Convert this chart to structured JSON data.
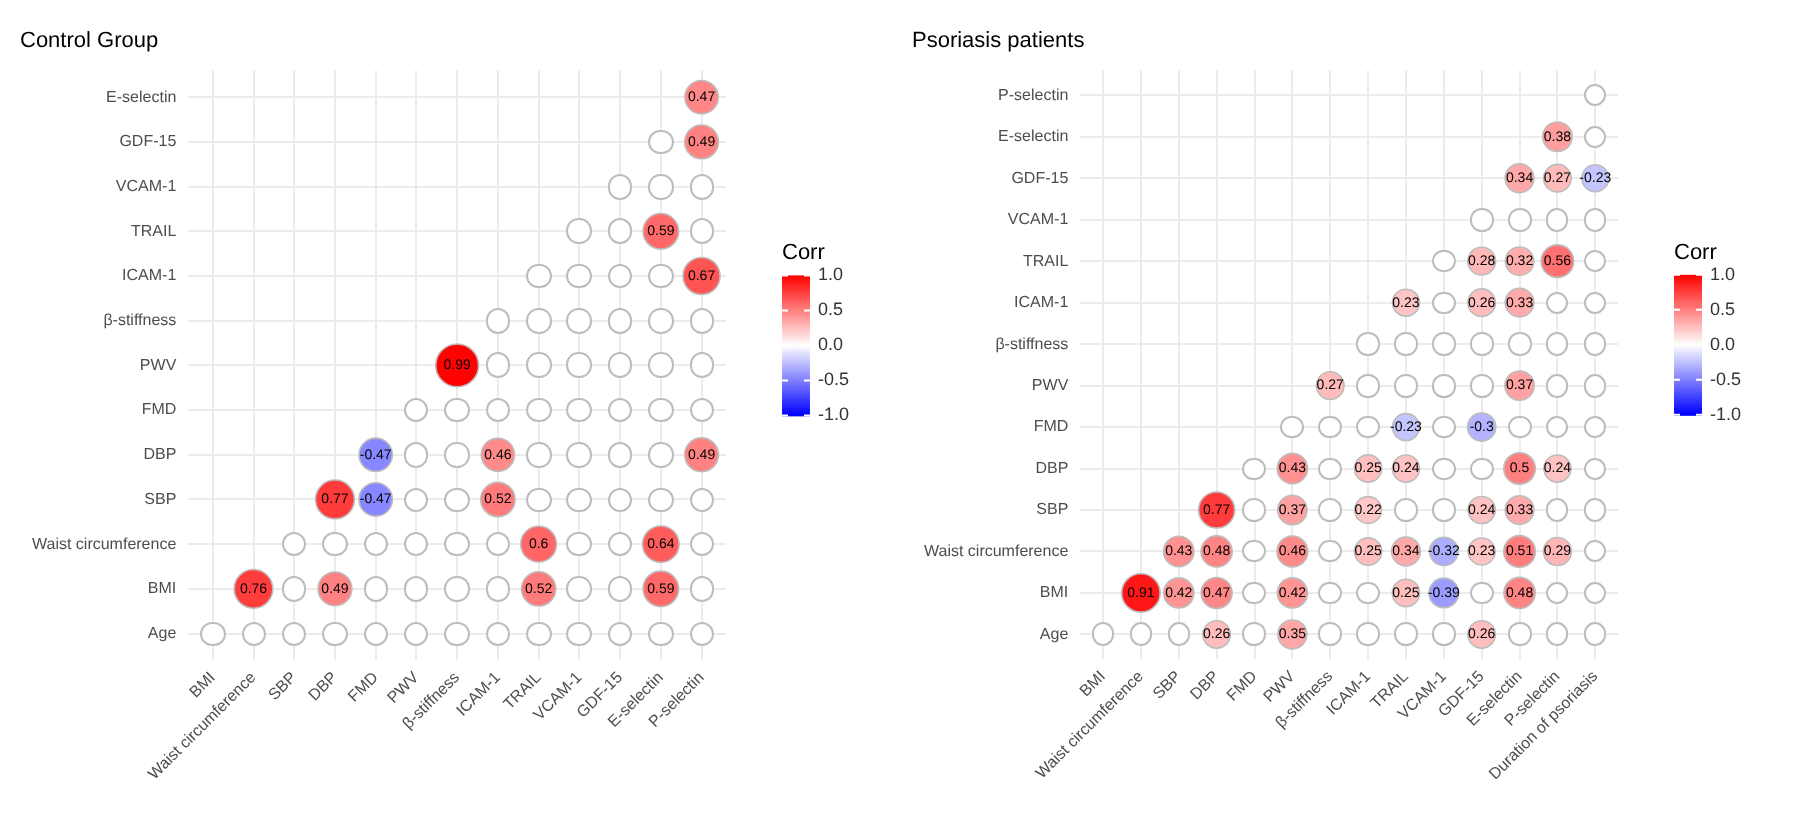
{
  "chart_data": [
    {
      "type": "heatmap",
      "title": "Control Group",
      "legend_title": "Corr",
      "grid": true,
      "data_labels": true,
      "clim": [
        -1,
        1
      ],
      "cticks": [
        {
          "value": 1,
          "label": "1.0"
        },
        {
          "value": 0.5,
          "label": "0.5"
        },
        {
          "value": 0,
          "label": "0.0"
        },
        {
          "value": -0.5,
          "label": "-0.5"
        },
        {
          "value": -1,
          "label": "-1.0"
        }
      ],
      "categories": [
        "BMI",
        "Waist circumference",
        "SBP",
        "DBP",
        "FMD",
        "PWV",
        "β-stiffness",
        "ICAM-1",
        "TRAIL",
        "VCAM-1",
        "GDF-15",
        "E-selectin",
        "P-selectin"
      ],
      "y_categories": [
        "E-selectin",
        "GDF-15",
        "VCAM-1",
        "TRAIL",
        "ICAM-1",
        "β-stiffness",
        "PWV",
        "FMD",
        "DBP",
        "SBP",
        "Waist circumference",
        "BMI",
        "Age"
      ],
      "cells": [
        [
          null,
          null,
          null,
          null,
          null,
          null,
          null,
          null,
          null,
          null,
          null,
          null,
          0.47
        ],
        [
          null,
          null,
          null,
          null,
          null,
          null,
          null,
          null,
          null,
          null,
          null,
          null,
          0.49
        ],
        [
          null,
          null,
          null,
          null,
          null,
          null,
          null,
          null,
          null,
          null,
          null,
          null,
          null
        ],
        [
          null,
          null,
          null,
          null,
          null,
          null,
          null,
          null,
          null,
          null,
          null,
          0.59,
          null
        ],
        [
          null,
          null,
          null,
          null,
          null,
          null,
          null,
          null,
          null,
          null,
          null,
          null,
          0.67
        ],
        [
          null,
          null,
          null,
          null,
          null,
          null,
          null,
          null,
          null,
          null,
          null,
          null,
          null
        ],
        [
          null,
          null,
          null,
          null,
          null,
          null,
          0.99,
          null,
          null,
          null,
          null,
          null,
          null
        ],
        [
          null,
          null,
          null,
          null,
          null,
          null,
          null,
          null,
          null,
          null,
          null,
          null,
          null
        ],
        [
          null,
          null,
          null,
          null,
          -0.47,
          null,
          null,
          0.46,
          null,
          null,
          null,
          null,
          0.49
        ],
        [
          null,
          null,
          null,
          0.77,
          -0.47,
          null,
          null,
          0.52,
          null,
          null,
          null,
          null,
          null
        ],
        [
          null,
          null,
          null,
          null,
          null,
          null,
          null,
          null,
          0.6,
          null,
          null,
          0.64,
          null
        ],
        [
          null,
          0.76,
          null,
          0.49,
          null,
          null,
          null,
          null,
          0.52,
          null,
          null,
          0.59,
          null
        ],
        [
          null,
          null,
          null,
          null,
          null,
          null,
          null,
          null,
          null,
          null,
          null,
          null,
          null
        ]
      ]
    },
    {
      "type": "heatmap",
      "title": "Psoriasis patients",
      "legend_title": "Corr",
      "grid": true,
      "data_labels": true,
      "clim": [
        -1,
        1
      ],
      "cticks": [
        {
          "value": 1,
          "label": "1.0"
        },
        {
          "value": 0.5,
          "label": "0.5"
        },
        {
          "value": 0,
          "label": "0.0"
        },
        {
          "value": -0.5,
          "label": "-0.5"
        },
        {
          "value": -1,
          "label": "-1.0"
        }
      ],
      "categories": [
        "BMI",
        "Waist circumference",
        "SBP",
        "DBP",
        "FMD",
        "PWV",
        "β-stiffness",
        "ICAM-1",
        "TRAIL",
        "VCAM-1",
        "GDF-15",
        "E-selectin",
        "P-selectin",
        "Duration of psoriasis"
      ],
      "y_categories": [
        "P-selectin",
        "E-selectin",
        "GDF-15",
        "VCAM-1",
        "TRAIL",
        "ICAM-1",
        "β-stiffness",
        "PWV",
        "FMD",
        "DBP",
        "SBP",
        "Waist circumference",
        "BMI",
        "Age"
      ],
      "cells": [
        [
          null,
          null,
          null,
          null,
          null,
          null,
          null,
          null,
          null,
          null,
          null,
          null,
          null,
          null
        ],
        [
          null,
          null,
          null,
          null,
          null,
          null,
          null,
          null,
          null,
          null,
          null,
          null,
          0.38,
          null
        ],
        [
          null,
          null,
          null,
          null,
          null,
          null,
          null,
          null,
          null,
          null,
          null,
          0.34,
          0.27,
          -0.23
        ],
        [
          null,
          null,
          null,
          null,
          null,
          null,
          null,
          null,
          null,
          null,
          null,
          null,
          null,
          null
        ],
        [
          null,
          null,
          null,
          null,
          null,
          null,
          null,
          null,
          null,
          null,
          0.28,
          0.32,
          0.56,
          null
        ],
        [
          null,
          null,
          null,
          null,
          null,
          null,
          null,
          null,
          0.23,
          null,
          0.26,
          0.33,
          null,
          null
        ],
        [
          null,
          null,
          null,
          null,
          null,
          null,
          null,
          null,
          null,
          null,
          null,
          null,
          null,
          null
        ],
        [
          null,
          null,
          null,
          null,
          null,
          null,
          0.27,
          null,
          null,
          null,
          null,
          0.37,
          null,
          null
        ],
        [
          null,
          null,
          null,
          null,
          null,
          null,
          null,
          null,
          -0.23,
          null,
          -0.3,
          null,
          null,
          null
        ],
        [
          null,
          null,
          null,
          null,
          null,
          0.43,
          null,
          0.25,
          0.24,
          null,
          null,
          0.5,
          0.24,
          null
        ],
        [
          null,
          null,
          null,
          0.77,
          null,
          0.37,
          null,
          0.22,
          null,
          null,
          0.24,
          0.33,
          null,
          null
        ],
        [
          null,
          null,
          0.43,
          0.48,
          null,
          0.46,
          null,
          0.25,
          0.34,
          -0.32,
          0.23,
          0.51,
          0.29,
          null
        ],
        [
          null,
          0.91,
          0.42,
          0.47,
          null,
          0.42,
          null,
          null,
          0.25,
          -0.39,
          null,
          0.48,
          null,
          null
        ],
        [
          null,
          null,
          null,
          0.26,
          null,
          0.35,
          null,
          null,
          null,
          null,
          0.26,
          null,
          null,
          null
        ]
      ]
    }
  ]
}
